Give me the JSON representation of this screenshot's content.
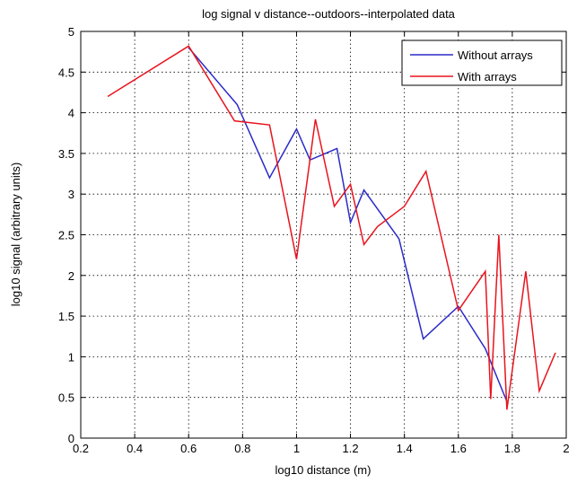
{
  "chart_data": {
    "type": "line",
    "title": "log signal v distance--outdoors--interpolated data",
    "xlabel": "log10 distance (m)",
    "ylabel": "log10 signal (arbitrary units)",
    "xlim": [
      0.2,
      2
    ],
    "ylim": [
      0,
      5
    ],
    "xticks": [
      "0.2",
      "0.4",
      "0.6",
      "0.8",
      "1",
      "1.2",
      "1.4",
      "1.6",
      "1.8",
      "2"
    ],
    "yticks": [
      "0",
      "0.5",
      "1",
      "1.5",
      "2",
      "2.5",
      "3",
      "3.5",
      "4",
      "4.5",
      "5"
    ],
    "grid": true,
    "legend_position": "top-right",
    "series": [
      {
        "name": "Without arrays",
        "color": "#2b2bc8",
        "x": [
          0.6,
          0.78,
          0.9,
          1.0,
          1.05,
          1.15,
          1.2,
          1.25,
          1.38,
          1.47,
          1.6,
          1.7,
          1.78
        ],
        "y": [
          4.8,
          4.1,
          3.2,
          3.8,
          3.42,
          3.56,
          2.65,
          3.05,
          2.45,
          1.22,
          1.62,
          1.1,
          0.45
        ]
      },
      {
        "name": "With arrays",
        "color": "#e8141e",
        "x": [
          0.3,
          0.6,
          0.77,
          0.9,
          1.0,
          1.07,
          1.14,
          1.2,
          1.25,
          1.3,
          1.4,
          1.48,
          1.6,
          1.7,
          1.72,
          1.75,
          1.78,
          1.85,
          1.9,
          1.96
        ],
        "y": [
          4.2,
          4.82,
          3.9,
          3.85,
          2.2,
          3.92,
          2.85,
          3.12,
          2.38,
          2.6,
          2.85,
          3.28,
          1.57,
          2.05,
          0.48,
          2.5,
          0.35,
          2.05,
          0.58,
          1.05
        ]
      }
    ]
  }
}
